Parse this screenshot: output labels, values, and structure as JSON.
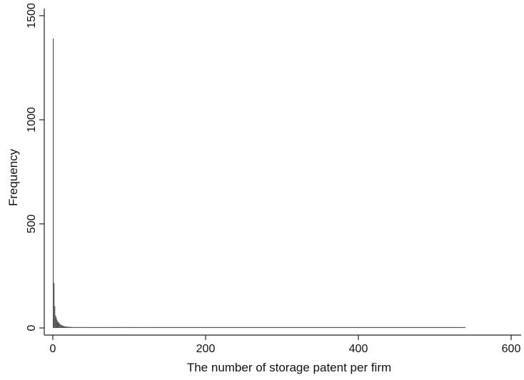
{
  "chart_data": {
    "type": "bar",
    "title": "",
    "xlabel": "The number of storage patent per firm",
    "ylabel": "Frequency",
    "xlim": [
      0,
      600
    ],
    "ylim": [
      0,
      1500
    ],
    "xticks": [
      "0",
      "200",
      "400",
      "600"
    ],
    "yticks": [
      "0",
      "500",
      "1000",
      "1500"
    ],
    "grid": false,
    "legend": "none",
    "bar_color": "#555555",
    "series": [
      {
        "x": [
          1,
          2,
          3,
          4,
          5,
          6,
          7,
          8,
          9,
          10,
          11,
          12,
          13,
          14,
          15,
          16,
          17,
          18,
          19,
          20,
          22,
          24,
          26,
          28,
          30,
          35,
          40,
          45,
          50,
          60,
          70,
          80,
          90,
          100,
          120,
          150,
          200,
          250,
          300,
          350,
          400,
          450,
          500,
          540
        ],
        "values": [
          1390,
          215,
          105,
          60,
          50,
          38,
          30,
          27,
          22,
          18,
          15,
          13,
          12,
          10,
          9,
          8,
          7,
          7,
          6,
          6,
          5,
          5,
          4,
          4,
          4,
          3,
          3,
          3,
          2,
          2,
          2,
          1,
          1,
          1,
          1,
          1,
          1,
          1,
          1,
          1,
          1,
          1,
          1,
          1
        ]
      }
    ]
  }
}
